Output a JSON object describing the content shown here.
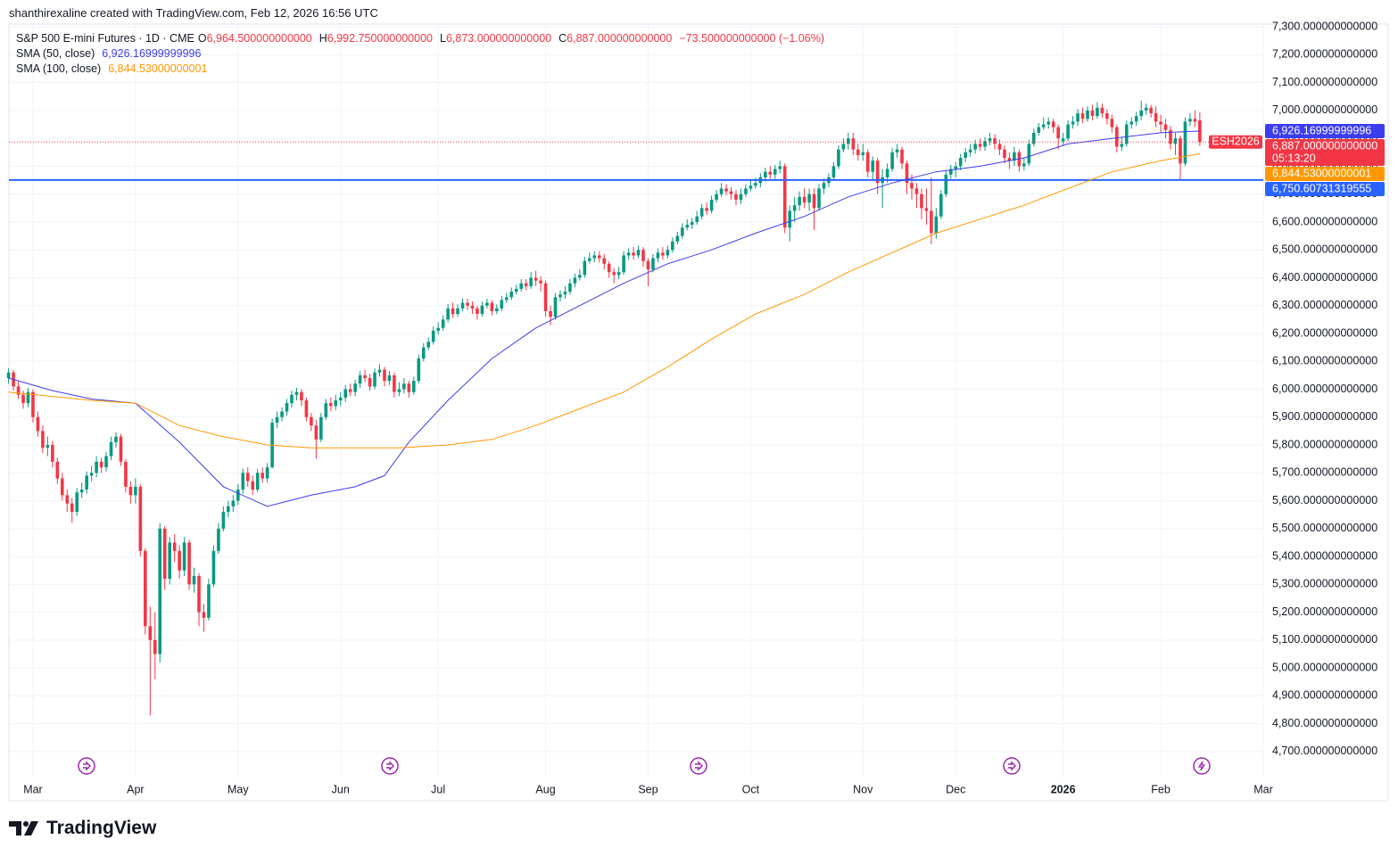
{
  "header": {
    "attribution": "shanthirexaline created with TradingView.com, Feb 12, 2026 16:56 UTC",
    "symbol": "S&P 500 E-mini Futures · 1D · CME",
    "ohlc": [
      {
        "key": "O",
        "text": "6,964.500000000000"
      },
      {
        "key": "H",
        "text": "6,992.750000000000"
      },
      {
        "key": "L",
        "text": "6,873.000000000000"
      },
      {
        "key": "C",
        "text": "6,887.000000000000"
      }
    ],
    "change": "−73.500000000000 (−1.06%)"
  },
  "chart_data": {
    "type": "candlestick",
    "up_color": "#089981",
    "down_color": "#f23645",
    "open": [
      6040,
      6060,
      6010,
      5980,
      5950,
      5990,
      5900,
      5850,
      5790,
      5800,
      5740,
      5680,
      5620,
      5590,
      5560,
      5630,
      5640,
      5690,
      5700,
      5740,
      5720,
      5760,
      5810,
      5830,
      5740,
      5650,
      5620,
      5650,
      5420,
      5150,
      5100,
      5050,
      5500,
      5320,
      5450,
      5420,
      5350,
      5450,
      5300,
      5330,
      5200,
      5180,
      5300,
      5420,
      5500,
      5560,
      5580,
      5600,
      5640,
      5700,
      5670,
      5640,
      5700,
      5680,
      5720,
      5880,
      5900,
      5920,
      5950,
      5980,
      5990,
      5960,
      5900,
      5870,
      5820,
      5900,
      5950,
      5940,
      5960,
      5970,
      6000,
      5990,
      6020,
      6050,
      6040,
      6010,
      6060,
      6070,
      6030,
      6050,
      5990,
      6000,
      6020,
      5990,
      6030,
      6110,
      6150,
      6170,
      6210,
      6220,
      6250,
      6290,
      6270,
      6290,
      6310,
      6300,
      6290,
      6270,
      6300,
      6310,
      6280,
      6290,
      6320,
      6330,
      6350,
      6360,
      6380,
      6370,
      6400,
      6390,
      6380,
      6280,
      6260,
      6330,
      6340,
      6350,
      6380,
      6400,
      6410,
      6460,
      6470,
      6480,
      6470,
      6450,
      6420,
      6410,
      6420,
      6480,
      6490,
      6480,
      6500,
      6460,
      6430,
      6470,
      6490,
      6480,
      6500,
      6530,
      6550,
      6580,
      6590,
      6600,
      6620,
      6650,
      6640,
      6680,
      6700,
      6720,
      6710,
      6700,
      6680,
      6700,
      6720,
      6730,
      6740,
      6760,
      6780,
      6770,
      6790,
      6800,
      6580,
      6640,
      6660,
      6690,
      6670,
      6700,
      6650,
      6720,
      6740,
      6760,
      6800,
      6860,
      6880,
      6900,
      6860,
      6840,
      6850,
      6780,
      6820,
      6740,
      6760,
      6790,
      6850,
      6860,
      6810,
      6740,
      6720,
      6700,
      6650,
      6640,
      6560,
      6620,
      6700,
      6770,
      6790,
      6800,
      6830,
      6850,
      6860,
      6880,
      6870,
      6890,
      6900,
      6880,
      6860,
      6830,
      6820,
      6850,
      6800,
      6810,
      6880,
      6920,
      6940,
      6950,
      6960,
      6940,
      6890,
      6900,
      6950,
      6960,
      6990,
      6970,
      7000,
      6980,
      7010,
      6990,
      6970,
      6940,
      6870,
      6880,
      6950,
      6960,
      6980,
      7000,
      7010,
      6990,
      6960,
      6950,
      6930,
      6880,
      6900,
      6810,
      6960,
      6970,
      6964.5
    ],
    "high": [
      6075,
      6070,
      6030,
      5995,
      6005,
      6000,
      5920,
      5870,
      5830,
      5815,
      5755,
      5700,
      5640,
      5610,
      5645,
      5665,
      5705,
      5725,
      5760,
      5755,
      5775,
      5830,
      5845,
      5840,
      5750,
      5670,
      5680,
      5660,
      5430,
      5220,
      5200,
      5520,
      5510,
      5470,
      5480,
      5440,
      5470,
      5460,
      5360,
      5340,
      5230,
      5320,
      5440,
      5520,
      5580,
      5600,
      5620,
      5660,
      5715,
      5720,
      5690,
      5715,
      5720,
      5735,
      5895,
      5920,
      5935,
      5965,
      5995,
      6005,
      6000,
      5970,
      5915,
      5890,
      5915,
      5965,
      5970,
      5980,
      5990,
      6015,
      6020,
      6035,
      6065,
      6070,
      6055,
      6075,
      6090,
      6080,
      6065,
      6060,
      6025,
      6040,
      6030,
      6045,
      6125,
      6165,
      6185,
      6225,
      6240,
      6265,
      6305,
      6310,
      6305,
      6325,
      6325,
      6315,
      6300,
      6315,
      6325,
      6320,
      6305,
      6335,
      6345,
      6365,
      6375,
      6395,
      6395,
      6420,
      6425,
      6405,
      6390,
      6300,
      6345,
      6355,
      6370,
      6395,
      6415,
      6430,
      6475,
      6490,
      6495,
      6495,
      6485,
      6460,
      6435,
      6440,
      6495,
      6505,
      6510,
      6515,
      6510,
      6470,
      6485,
      6505,
      6510,
      6515,
      6545,
      6565,
      6595,
      6610,
      6615,
      6640,
      6665,
      6670,
      6695,
      6715,
      6740,
      6735,
      6725,
      6715,
      6720,
      6735,
      6750,
      6760,
      6775,
      6795,
      6800,
      6805,
      6820,
      6810,
      6660,
      6690,
      6710,
      6720,
      6720,
      6720,
      6735,
      6755,
      6775,
      6815,
      6875,
      6900,
      6920,
      6920,
      6880,
      6880,
      6860,
      6835,
      6830,
      6790,
      6810,
      6865,
      6880,
      6870,
      6820,
      6770,
      6740,
      6720,
      6720,
      6760,
      6650,
      6715,
      6785,
      6805,
      6815,
      6845,
      6865,
      6880,
      6895,
      6900,
      6905,
      6920,
      6915,
      6895,
      6875,
      6850,
      6870,
      6860,
      6830,
      6895,
      6935,
      6955,
      6975,
      6975,
      6970,
      6950,
      6920,
      6965,
      6980,
      7005,
      7010,
      7015,
      7020,
      7030,
      7025,
      7005,
      6985,
      6950,
      6905,
      6965,
      6975,
      6995,
      7035,
      7025,
      7020,
      7015,
      6985,
      6970,
      6945,
      6920,
      6910,
      6975,
      6990,
      7000,
      6992.75
    ],
    "low": [
      6020,
      5995,
      5965,
      5930,
      5935,
      5880,
      5830,
      5770,
      5760,
      5720,
      5660,
      5600,
      5560,
      5520,
      5545,
      5610,
      5625,
      5670,
      5685,
      5700,
      5705,
      5745,
      5790,
      5725,
      5630,
      5590,
      5590,
      5400,
      5120,
      4830,
      4960,
      5020,
      5280,
      5300,
      5380,
      5320,
      5330,
      5280,
      5270,
      5150,
      5130,
      5170,
      5290,
      5410,
      5490,
      5540,
      5560,
      5585,
      5625,
      5650,
      5620,
      5630,
      5665,
      5665,
      5715,
      5860,
      5885,
      5905,
      5935,
      5960,
      5940,
      5885,
      5850,
      5750,
      5810,
      5890,
      5920,
      5925,
      5940,
      5955,
      5975,
      5975,
      6005,
      6025,
      5995,
      6000,
      6045,
      6010,
      6015,
      5970,
      5975,
      5985,
      5970,
      5980,
      6020,
      6100,
      6140,
      6160,
      6195,
      6210,
      6240,
      6255,
      6260,
      6280,
      6285,
      6270,
      6250,
      6260,
      6290,
      6265,
      6270,
      6280,
      6310,
      6320,
      6340,
      6350,
      6355,
      6360,
      6370,
      6350,
      6260,
      6230,
      6250,
      6315,
      6325,
      6340,
      6365,
      6390,
      6400,
      6450,
      6455,
      6455,
      6430,
      6400,
      6380,
      6395,
      6410,
      6465,
      6465,
      6470,
      6440,
      6370,
      6420,
      6455,
      6465,
      6470,
      6490,
      6520,
      6540,
      6570,
      6575,
      6590,
      6610,
      6625,
      6630,
      6670,
      6690,
      6695,
      6680,
      6660,
      6665,
      6690,
      6710,
      6720,
      6725,
      6745,
      6755,
      6755,
      6775,
      6560,
      6530,
      6600,
      6640,
      6650,
      6640,
      6570,
      6640,
      6700,
      6725,
      6750,
      6790,
      6850,
      6860,
      6840,
      6820,
      6820,
      6760,
      6750,
      6700,
      6650,
      6740,
      6780,
      6830,
      6790,
      6700,
      6680,
      6650,
      6610,
      6590,
      6520,
      6540,
      6610,
      6690,
      6755,
      6760,
      6785,
      6815,
      6835,
      6845,
      6855,
      6855,
      6875,
      6860,
      6840,
      6810,
      6790,
      6800,
      6780,
      6785,
      6800,
      6870,
      6910,
      6930,
      6935,
      6920,
      6860,
      6875,
      6890,
      6935,
      6945,
      6955,
      6960,
      6965,
      6970,
      6975,
      6950,
      6920,
      6850,
      6855,
      6870,
      6935,
      6945,
      6965,
      6985,
      6975,
      6940,
      6920,
      6900,
      6860,
      6840,
      6750,
      6800,
      6945,
      6940,
      6873
    ],
    "close": [
      6060,
      6010,
      5980,
      5950,
      5990,
      5900,
      5850,
      5790,
      5800,
      5740,
      5680,
      5620,
      5590,
      5560,
      5630,
      5640,
      5690,
      5700,
      5740,
      5720,
      5760,
      5810,
      5830,
      5740,
      5650,
      5620,
      5650,
      5420,
      5150,
      5100,
      5050,
      5500,
      5320,
      5450,
      5420,
      5350,
      5450,
      5300,
      5330,
      5200,
      5180,
      5300,
      5420,
      5500,
      5560,
      5580,
      5600,
      5640,
      5700,
      5670,
      5640,
      5700,
      5680,
      5720,
      5880,
      5900,
      5920,
      5950,
      5980,
      5990,
      5960,
      5900,
      5870,
      5820,
      5900,
      5950,
      5940,
      5960,
      5970,
      6000,
      5990,
      6020,
      6050,
      6040,
      6010,
      6060,
      6070,
      6030,
      6050,
      5990,
      6000,
      6020,
      5990,
      6030,
      6110,
      6150,
      6170,
      6210,
      6220,
      6250,
      6290,
      6270,
      6290,
      6310,
      6300,
      6290,
      6270,
      6300,
      6310,
      6280,
      6290,
      6320,
      6330,
      6350,
      6360,
      6380,
      6370,
      6400,
      6390,
      6380,
      6280,
      6260,
      6330,
      6340,
      6350,
      6380,
      6400,
      6410,
      6460,
      6470,
      6480,
      6470,
      6450,
      6420,
      6410,
      6420,
      6480,
      6490,
      6480,
      6500,
      6460,
      6430,
      6470,
      6490,
      6480,
      6500,
      6530,
      6550,
      6580,
      6590,
      6600,
      6620,
      6650,
      6640,
      6680,
      6700,
      6720,
      6710,
      6700,
      6680,
      6700,
      6720,
      6730,
      6740,
      6760,
      6780,
      6770,
      6790,
      6800,
      6580,
      6640,
      6660,
      6690,
      6670,
      6700,
      6650,
      6720,
      6740,
      6760,
      6800,
      6860,
      6880,
      6900,
      6860,
      6840,
      6850,
      6780,
      6820,
      6740,
      6760,
      6790,
      6850,
      6860,
      6810,
      6740,
      6720,
      6700,
      6650,
      6640,
      6560,
      6620,
      6700,
      6770,
      6790,
      6800,
      6830,
      6850,
      6860,
      6880,
      6870,
      6890,
      6900,
      6880,
      6860,
      6830,
      6820,
      6850,
      6800,
      6810,
      6880,
      6920,
      6940,
      6950,
      6960,
      6940,
      6900,
      6900,
      6950,
      6960,
      6990,
      6970,
      7000,
      6980,
      7010,
      6990,
      6970,
      6940,
      6870,
      6880,
      6950,
      6960,
      6980,
      7000,
      7010,
      6990,
      6960,
      6950,
      6930,
      6880,
      6900,
      6810,
      6960,
      6970,
      6960,
      6887
    ],
    "series": [
      {
        "name": "SMA (50, close)",
        "color": "#3c3cf0",
        "last_label": "6,926.16999999996",
        "x": [
          0,
          9,
          17,
          26,
          35,
          44,
          53,
          62,
          71,
          77,
          82,
          90,
          99,
          108,
          117,
          126,
          135,
          144,
          153,
          163,
          172,
          181,
          190,
          199,
          208,
          217,
          226,
          236,
          244
        ],
        "values": [
          6040,
          5995,
          5965,
          5950,
          5810,
          5650,
          5580,
          5620,
          5650,
          5690,
          5810,
          5960,
          6110,
          6220,
          6300,
          6380,
          6450,
          6500,
          6560,
          6620,
          6690,
          6740,
          6780,
          6800,
          6830,
          6880,
          6900,
          6920,
          6926.17
        ]
      },
      {
        "name": "SMA (100, close)",
        "color": "#ff9800",
        "last_label": "6,844.53000000001",
        "x": [
          0,
          17,
          26,
          35,
          44,
          53,
          62,
          71,
          80,
          90,
          99,
          108,
          117,
          126,
          130,
          135,
          144,
          153,
          163,
          172,
          181,
          190,
          199,
          208,
          217,
          226,
          236,
          244
        ],
        "values": [
          5990,
          5960,
          5950,
          5870,
          5830,
          5800,
          5790,
          5790,
          5790,
          5800,
          5820,
          5870,
          5930,
          5990,
          6030,
          6080,
          6180,
          6270,
          6340,
          6420,
          6490,
          6560,
          6610,
          6660,
          6720,
          6780,
          6820,
          6844.53
        ]
      }
    ],
    "hlines": [
      {
        "value": 6750.60731319555,
        "label": "6,750.60731319555",
        "color": "#2962ff"
      }
    ],
    "last_price": {
      "label": "6,887.000000000000",
      "countdown": "05:13:20",
      "symbol": "ESH2026"
    },
    "ylim": [
      4607,
      7310
    ],
    "yticks": [
      {
        "value": 7300,
        "label": "7,300.000000000000"
      },
      {
        "value": 7200,
        "label": "7,200.000000000000"
      },
      {
        "value": 7100,
        "label": "7,100.000000000000"
      },
      {
        "value": 7000,
        "label": "7,000.000000000000"
      },
      {
        "value": 6900,
        "label": "6,900.000000000000"
      },
      {
        "value": 6800,
        "label": "6,800.000000000000"
      },
      {
        "value": 6700,
        "label": "6,700.000000000000"
      },
      {
        "value": 6600,
        "label": "6,600.000000000000"
      },
      {
        "value": 6500,
        "label": "6,500.000000000000"
      },
      {
        "value": 6400,
        "label": "6,400.000000000000"
      },
      {
        "value": 6300,
        "label": "6,300.000000000000"
      },
      {
        "value": 6200,
        "label": "6,200.000000000000"
      },
      {
        "value": 6100,
        "label": "6,100.000000000000"
      },
      {
        "value": 6000,
        "label": "6,000.000000000000"
      },
      {
        "value": 5900,
        "label": "5,900.000000000000"
      },
      {
        "value": 5800,
        "label": "5,800.000000000000"
      },
      {
        "value": 5700,
        "label": "5,700.000000000000"
      },
      {
        "value": 5600,
        "label": "5,600.000000000000"
      },
      {
        "value": 5500,
        "label": "5,500.000000000000"
      },
      {
        "value": 5400,
        "label": "5,400.000000000000"
      },
      {
        "value": 5300,
        "label": "5,300.000000000000"
      },
      {
        "value": 5200,
        "label": "5,200.000000000000"
      },
      {
        "value": 5100,
        "label": "5,100.000000000000"
      },
      {
        "value": 5000,
        "label": "5,000.000000000000"
      },
      {
        "value": 4900,
        "label": "4,900.000000000000"
      },
      {
        "value": 4800,
        "label": "4,800.000000000000"
      },
      {
        "value": 4700,
        "label": "4,700.000000000000"
      }
    ],
    "xlim": [
      0,
      257
    ],
    "xticks": [
      {
        "value": 5,
        "label": "Mar"
      },
      {
        "value": 26,
        "label": "Apr"
      },
      {
        "value": 47,
        "label": "May"
      },
      {
        "value": 68,
        "label": "Jun"
      },
      {
        "value": 88,
        "label": "Jul"
      },
      {
        "value": 110,
        "label": "Aug"
      },
      {
        "value": 131,
        "label": "Sep"
      },
      {
        "value": 152,
        "label": "Oct"
      },
      {
        "value": 175,
        "label": "Nov"
      },
      {
        "value": 194,
        "label": "Dec"
      },
      {
        "value": 216,
        "label": "2026"
      },
      {
        "value": 236,
        "label": "Feb"
      },
      {
        "value": 257,
        "label": "Mar"
      }
    ],
    "grid": true
  },
  "footer": {
    "logo": "TradingView"
  }
}
